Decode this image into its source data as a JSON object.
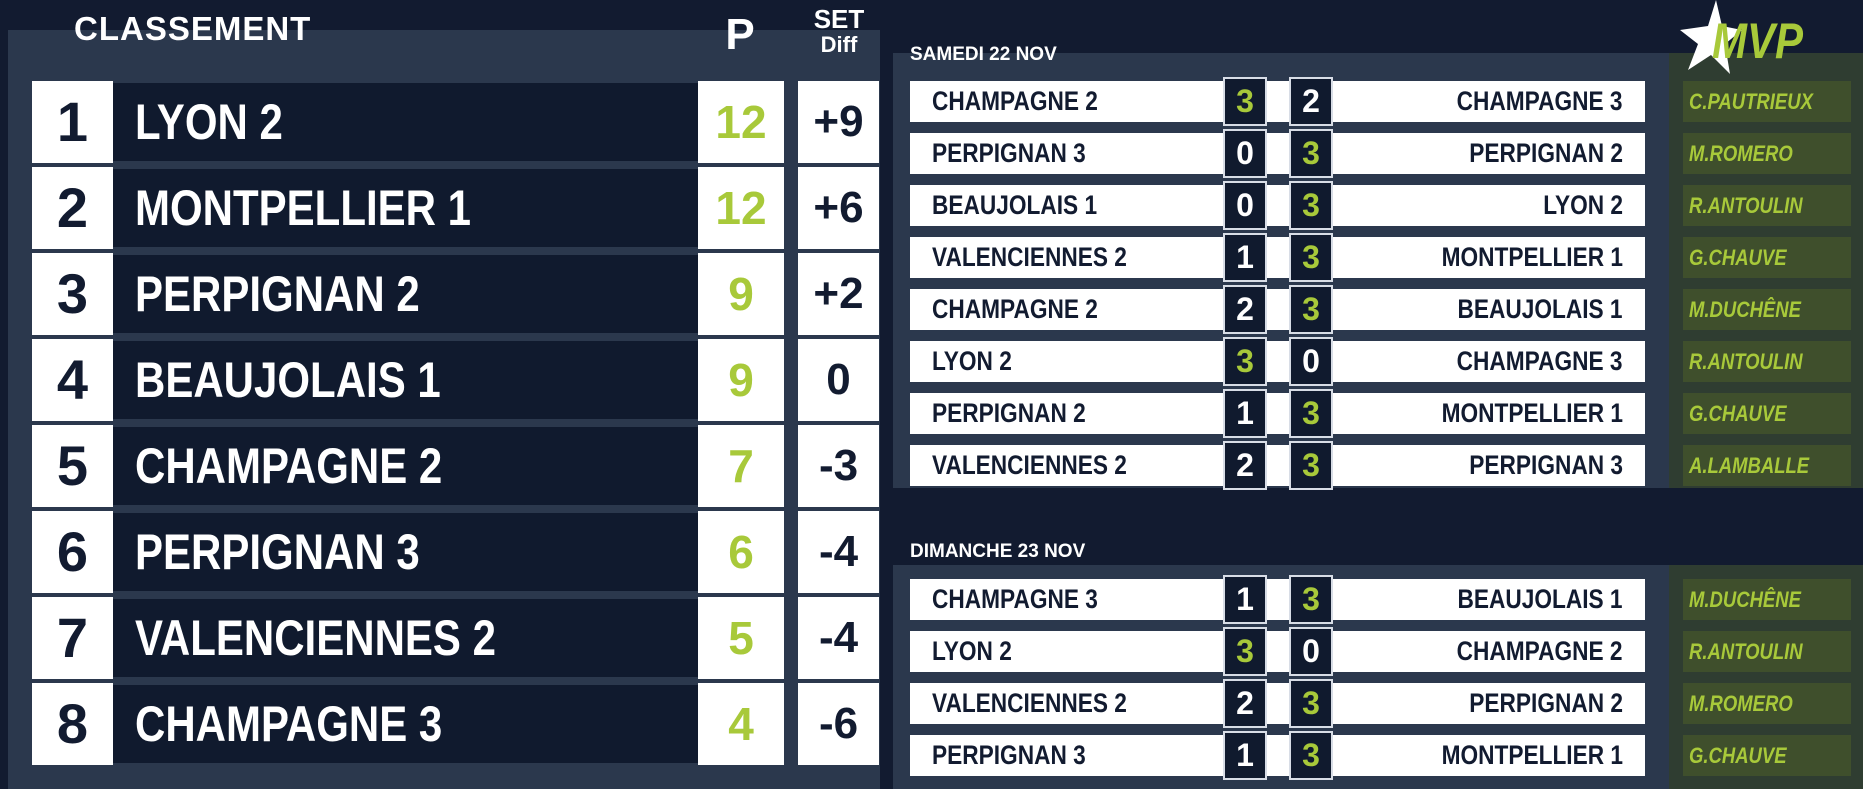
{
  "standings": {
    "title": "CLASSEMENT",
    "points_header": "P",
    "diff_header_line1": "SET",
    "diff_header_line2": "Diff",
    "rows": [
      {
        "rank": "1",
        "team": "LYON 2",
        "points": "12",
        "diff": "+9"
      },
      {
        "rank": "2",
        "team": "MONTPELLIER 1",
        "points": "12",
        "diff": "+6"
      },
      {
        "rank": "3",
        "team": "PERPIGNAN 2",
        "points": "9",
        "diff": "+2"
      },
      {
        "rank": "4",
        "team": "BEAUJOLAIS 1",
        "points": "9",
        "diff": "0"
      },
      {
        "rank": "5",
        "team": "CHAMPAGNE 2",
        "points": "7",
        "diff": "-3"
      },
      {
        "rank": "6",
        "team": "PERPIGNAN 3",
        "points": "6",
        "diff": "-4"
      },
      {
        "rank": "7",
        "team": "VALENCIENNES 2",
        "points": "5",
        "diff": "-4"
      },
      {
        "rank": "8",
        "team": "CHAMPAGNE 3",
        "points": "4",
        "diff": "-6"
      }
    ]
  },
  "mvp_header": "MVP",
  "days": [
    {
      "label": "SAMEDI 22 NOV",
      "matches": [
        {
          "home": "CHAMPAGNE 2",
          "home_score": "3",
          "away_score": "2",
          "away": "CHAMPAGNE 3",
          "mvp": "C.PAUTRIEUX"
        },
        {
          "home": "PERPIGNAN 3",
          "home_score": "0",
          "away_score": "3",
          "away": "PERPIGNAN 2",
          "mvp": "M.ROMERO"
        },
        {
          "home": "BEAUJOLAIS 1",
          "home_score": "0",
          "away_score": "3",
          "away": "LYON 2",
          "mvp": "R.ANTOULIN"
        },
        {
          "home": "VALENCIENNES 2",
          "home_score": "1",
          "away_score": "3",
          "away": "MONTPELLIER 1",
          "mvp": "G.CHAUVE"
        },
        {
          "home": "CHAMPAGNE 2",
          "home_score": "2",
          "away_score": "3",
          "away": "BEAUJOLAIS 1",
          "mvp": "M.DUCHÊNE"
        },
        {
          "home": "LYON 2",
          "home_score": "3",
          "away_score": "0",
          "away": "CHAMPAGNE 3",
          "mvp": "R.ANTOULIN"
        },
        {
          "home": "PERPIGNAN 2",
          "home_score": "1",
          "away_score": "3",
          "away": "MONTPELLIER 1",
          "mvp": "G.CHAUVE"
        },
        {
          "home": "VALENCIENNES 2",
          "home_score": "2",
          "away_score": "3",
          "away": "PERPIGNAN 3",
          "mvp": "A.LAMBALLE"
        }
      ]
    },
    {
      "label": "DIMANCHE 23 NOV",
      "matches": [
        {
          "home": "CHAMPAGNE 3",
          "home_score": "1",
          "away_score": "3",
          "away": "BEAUJOLAIS 1",
          "mvp": "M.DUCHÊNE"
        },
        {
          "home": "LYON 2",
          "home_score": "3",
          "away_score": "0",
          "away": "CHAMPAGNE 2",
          "mvp": "R.ANTOULIN"
        },
        {
          "home": "VALENCIENNES 2",
          "home_score": "2",
          "away_score": "3",
          "away": "PERPIGNAN 2",
          "mvp": "M.ROMERO"
        },
        {
          "home": "PERPIGNAN 3",
          "home_score": "1",
          "away_score": "3",
          "away": "MONTPELLIER 1",
          "mvp": "G.CHAUVE"
        }
      ]
    }
  ],
  "colors": {
    "accent_green": "#a8c93a",
    "navy": "#101a2e",
    "panel": "#2b384d"
  }
}
